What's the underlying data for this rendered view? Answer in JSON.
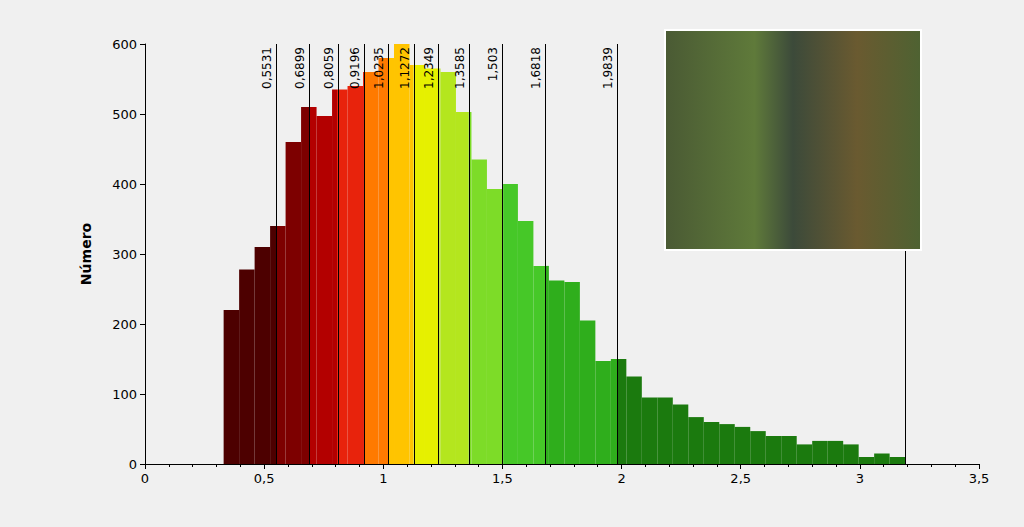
{
  "chart_data": {
    "type": "histogram",
    "ylabel": "Número",
    "bins": [
      0.33,
      0.395,
      0.46,
      0.525,
      0.59,
      0.655,
      0.72,
      0.785,
      0.85,
      0.915,
      0.98,
      1.045,
      1.11,
      1.175,
      1.24,
      1.305,
      1.37,
      1.435,
      1.5,
      1.565,
      1.63,
      1.695,
      1.76,
      1.825,
      1.89,
      1.955,
      2.02,
      2.085,
      2.15,
      2.215,
      2.28,
      2.345,
      2.41,
      2.475,
      2.54,
      2.605,
      2.67,
      2.735,
      2.8,
      2.865,
      2.93,
      2.995,
      3.06,
      3.125,
      3.19
    ],
    "counts": [
      220,
      278,
      310,
      340,
      460,
      510,
      497,
      535,
      540,
      560,
      580,
      600,
      570,
      565,
      560,
      503,
      435,
      393,
      400,
      347,
      283,
      262,
      260,
      205,
      147,
      150,
      125,
      95,
      95,
      85,
      67,
      60,
      57,
      53,
      47,
      40,
      40,
      28,
      33,
      33,
      28,
      10,
      15,
      10
    ],
    "class_breaks": [
      {
        "value": 0.5531,
        "label": "0,5531"
      },
      {
        "value": 0.6899,
        "label": "0,6899"
      },
      {
        "value": 0.8059,
        "label": "0,8059"
      },
      {
        "value": 0.9196,
        "label": "0,9196"
      },
      {
        "value": 1.0235,
        "label": "1,0235"
      },
      {
        "value": 1.1272,
        "label": "1,1272"
      },
      {
        "value": 1.2349,
        "label": "1,2349"
      },
      {
        "value": 1.3585,
        "label": "1,3585"
      },
      {
        "value": 1.503,
        "label": "1,503"
      },
      {
        "value": 1.6818,
        "label": "1,6818"
      },
      {
        "value": 1.9839,
        "label": "1,9839"
      }
    ],
    "max": 3.19,
    "colors": [
      "#4d0000",
      "#7d0000",
      "#b30000",
      "#e8230c",
      "#ff7a00",
      "#ffc400",
      "#e6f000",
      "#b4e61e",
      "#7ddc28",
      "#46c828",
      "#2fae1c",
      "#1b7a0e"
    ],
    "xlim": [
      0,
      3.5
    ],
    "xticks": [
      0,
      {
        "value": 0.5,
        "label": "0,5"
      },
      1,
      {
        "value": 1.5,
        "label": "1,5"
      },
      2,
      {
        "value": 2.5,
        "label": "2,5"
      },
      3,
      {
        "value": 3.5,
        "label": "3,5"
      }
    ],
    "ylim": [
      0,
      600
    ],
    "yticks": [
      0,
      100,
      200,
      300,
      400,
      500,
      600
    ],
    "grid": false
  }
}
